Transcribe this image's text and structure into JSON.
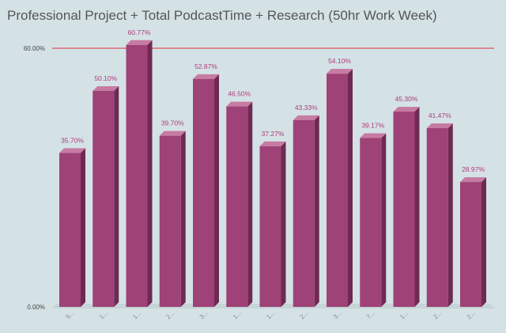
{
  "chart_data": {
    "type": "bar",
    "title": "Professional Project + Total PodcastTime + Research (50hr Work Week)",
    "categories": [
      "5...",
      "1...",
      "1...",
      "2...",
      "3...",
      "1...",
      "1...",
      "2...",
      "3...",
      "7...",
      "1...",
      "2...",
      "2..."
    ],
    "values": [
      35.7,
      50.1,
      60.77,
      39.7,
      52.87,
      46.5,
      37.27,
      43.33,
      54.1,
      39.17,
      45.3,
      41.47,
      28.97
    ],
    "data_labels": [
      "35.70%",
      "50.10%",
      "60.77%",
      "39.70%",
      "52.87%",
      "46.50%",
      "37.27%",
      "43.33%",
      "54.10%",
      "39.17%",
      "45.30%",
      "41.47%",
      "28.97%"
    ],
    "y_ticks": [
      {
        "value": 0,
        "label": "0.00%"
      },
      {
        "value": 60,
        "label": "60.00%"
      }
    ],
    "ylim": [
      0,
      60
    ],
    "xlabel": "",
    "ylabel": "",
    "grid": false,
    "reference_line": {
      "value": 60,
      "color": "#e0303a"
    },
    "colors": {
      "bar_front": "#9e4277",
      "bar_side": "#6e2a52",
      "bar_top": "#c77aa2",
      "data_label": "#b03a79",
      "background": "#d4e2e6"
    }
  }
}
